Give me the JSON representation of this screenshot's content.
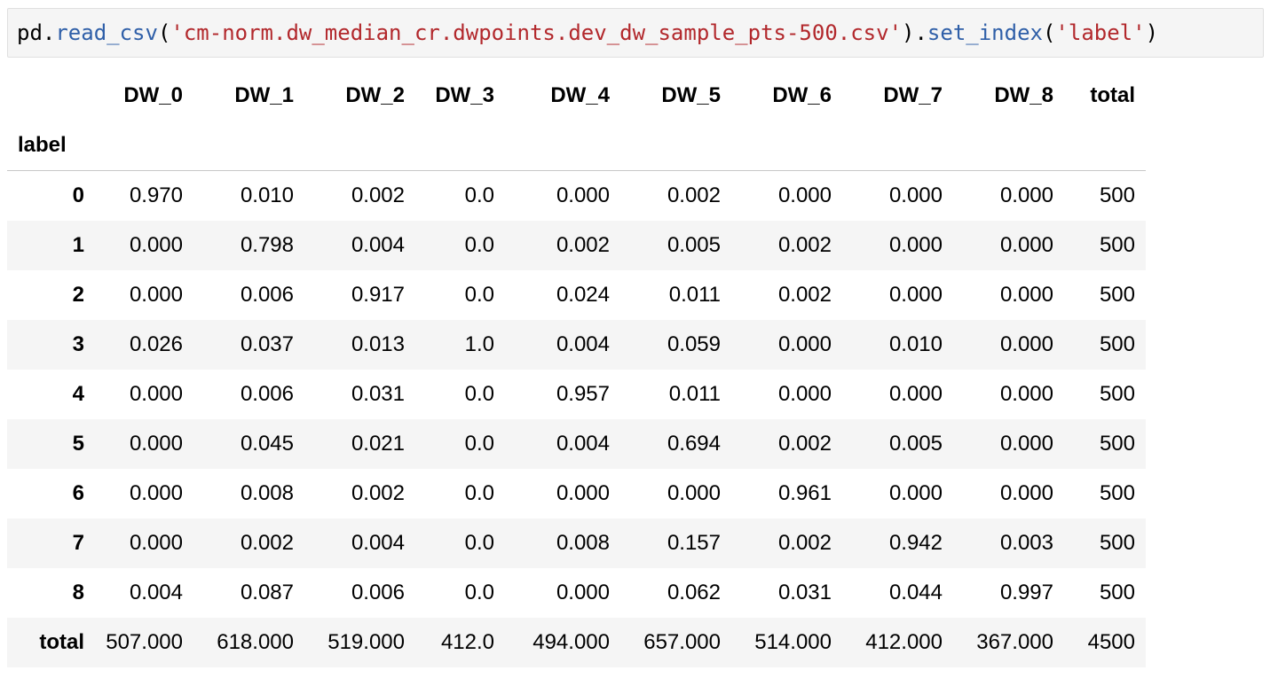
{
  "code_cell": {
    "tokens": [
      {
        "text": "pd.",
        "kind": "default"
      },
      {
        "text": "read_csv",
        "kind": "func"
      },
      {
        "text": "(",
        "kind": "default"
      },
      {
        "text": "'cm-norm.dw_median_cr.dwpoints.dev_dw_sample_pts-500.csv'",
        "kind": "string"
      },
      {
        "text": ").",
        "kind": "default"
      },
      {
        "text": "set_index",
        "kind": "func"
      },
      {
        "text": "(",
        "kind": "default"
      },
      {
        "text": "'label'",
        "kind": "string"
      },
      {
        "text": ")",
        "kind": "default"
      }
    ]
  },
  "colors": {
    "func": "#2f5fa8",
    "string": "#b2282c",
    "default": "#000000",
    "stripe": "#f5f5f5"
  },
  "dataframe": {
    "index_name": "label",
    "columns": [
      "DW_0",
      "DW_1",
      "DW_2",
      "DW_3",
      "DW_4",
      "DW_5",
      "DW_6",
      "DW_7",
      "DW_8",
      "total"
    ],
    "rows": [
      {
        "index": "0",
        "values": [
          "0.970",
          "0.010",
          "0.002",
          "0.0",
          "0.000",
          "0.002",
          "0.000",
          "0.000",
          "0.000",
          "500"
        ]
      },
      {
        "index": "1",
        "values": [
          "0.000",
          "0.798",
          "0.004",
          "0.0",
          "0.002",
          "0.005",
          "0.002",
          "0.000",
          "0.000",
          "500"
        ]
      },
      {
        "index": "2",
        "values": [
          "0.000",
          "0.006",
          "0.917",
          "0.0",
          "0.024",
          "0.011",
          "0.002",
          "0.000",
          "0.000",
          "500"
        ]
      },
      {
        "index": "3",
        "values": [
          "0.026",
          "0.037",
          "0.013",
          "1.0",
          "0.004",
          "0.059",
          "0.000",
          "0.010",
          "0.000",
          "500"
        ]
      },
      {
        "index": "4",
        "values": [
          "0.000",
          "0.006",
          "0.031",
          "0.0",
          "0.957",
          "0.011",
          "0.000",
          "0.000",
          "0.000",
          "500"
        ]
      },
      {
        "index": "5",
        "values": [
          "0.000",
          "0.045",
          "0.021",
          "0.0",
          "0.004",
          "0.694",
          "0.002",
          "0.005",
          "0.000",
          "500"
        ]
      },
      {
        "index": "6",
        "values": [
          "0.000",
          "0.008",
          "0.002",
          "0.0",
          "0.000",
          "0.000",
          "0.961",
          "0.000",
          "0.000",
          "500"
        ]
      },
      {
        "index": "7",
        "values": [
          "0.000",
          "0.002",
          "0.004",
          "0.0",
          "0.008",
          "0.157",
          "0.002",
          "0.942",
          "0.003",
          "500"
        ]
      },
      {
        "index": "8",
        "values": [
          "0.004",
          "0.087",
          "0.006",
          "0.0",
          "0.000",
          "0.062",
          "0.031",
          "0.044",
          "0.997",
          "500"
        ]
      },
      {
        "index": "total",
        "values": [
          "507.000",
          "618.000",
          "519.000",
          "412.0",
          "494.000",
          "657.000",
          "514.000",
          "412.000",
          "367.000",
          "4500"
        ]
      }
    ]
  }
}
